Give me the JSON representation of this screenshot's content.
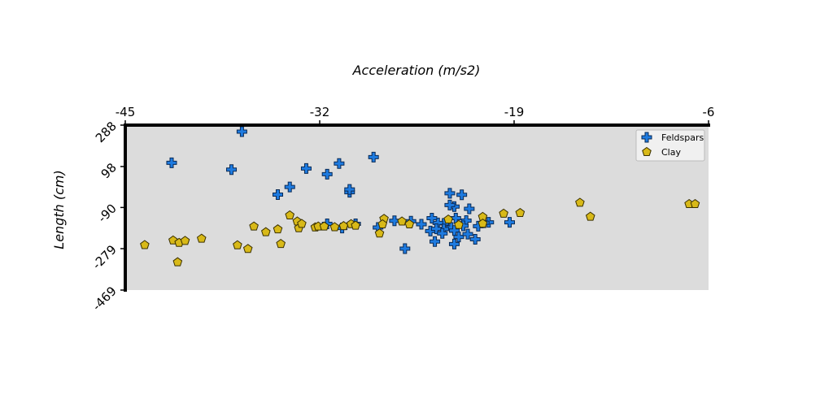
{
  "chart_data": {
    "type": "scatter",
    "title": "Acceleration (m/s2)",
    "xlabel": "Acceleration (m/s2)",
    "ylabel": "Length (cm)",
    "xlim": [
      -45,
      -6
    ],
    "ylim": [
      -469,
      288
    ],
    "x_ticks": [
      -45,
      -32,
      -19,
      -6
    ],
    "y_ticks": [
      288,
      98,
      -90,
      -279,
      -469
    ],
    "x_tick_labels": [
      "-45",
      "-32",
      "-19",
      "-6"
    ],
    "y_tick_labels": [
      "288",
      "98",
      "-90",
      "-279",
      "-469"
    ],
    "grid": false,
    "legend_position": "top-right",
    "colors": {
      "plot_background": "#dcdcdc",
      "feldspars": "#1e7be0",
      "clay": "#d8b918"
    },
    "series": [
      {
        "name": "Feldspars",
        "marker": "plus",
        "color": "#1e7be0",
        "points": [
          [
            -37.2,
            258
          ],
          [
            -41.9,
            115
          ],
          [
            -37.9,
            84
          ],
          [
            -32.9,
            89
          ],
          [
            -30.7,
            112
          ],
          [
            -31.5,
            63
          ],
          [
            -34.0,
            4
          ],
          [
            -34.8,
            -31
          ],
          [
            -28.4,
            141
          ],
          [
            -30.0,
            -20
          ],
          [
            -30.0,
            -7
          ],
          [
            -27.0,
            -151
          ],
          [
            -28.1,
            -182
          ],
          [
            -29.6,
            -165
          ],
          [
            -30.5,
            -184
          ],
          [
            -31.5,
            -165
          ],
          [
            -22.5,
            -32
          ],
          [
            -23.3,
            -25
          ],
          [
            -23.0,
            -86
          ],
          [
            -22.0,
            -96
          ],
          [
            -23.3,
            -79
          ],
          [
            -22.9,
            -139
          ],
          [
            -22.2,
            -150
          ],
          [
            -22.4,
            -174
          ],
          [
            -23.7,
            -163
          ],
          [
            -24.1,
            -161
          ],
          [
            -24.5,
            -139
          ],
          [
            -25.2,
            -167
          ],
          [
            -25.9,
            -153
          ],
          [
            -24.6,
            -198
          ],
          [
            -23.2,
            -182
          ],
          [
            -23.7,
            -189
          ],
          [
            -23.0,
            -196
          ],
          [
            -22.7,
            -225
          ],
          [
            -24.2,
            -188
          ],
          [
            -24.3,
            -246
          ],
          [
            -23.0,
            -258
          ],
          [
            -20.7,
            -158
          ],
          [
            -21.4,
            -176
          ],
          [
            -19.3,
            -158
          ],
          [
            -21.0,
            -160
          ],
          [
            -21.6,
            -236
          ],
          [
            -26.3,
            -279
          ],
          [
            -23.8,
            -209
          ],
          [
            -22.1,
            -212
          ]
        ]
      },
      {
        "name": "Clay",
        "marker": "pentagon",
        "color": "#d8b918",
        "points": [
          [
            -43.7,
            -262
          ],
          [
            -41.8,
            -241
          ],
          [
            -41.4,
            -252
          ],
          [
            -41.0,
            -243
          ],
          [
            -39.9,
            -233
          ],
          [
            -41.5,
            -341
          ],
          [
            -37.5,
            -263
          ],
          [
            -36.4,
            -177
          ],
          [
            -36.8,
            -280
          ],
          [
            -35.6,
            -203
          ],
          [
            -34.8,
            -190
          ],
          [
            -34.6,
            -257
          ],
          [
            -34.0,
            -126
          ],
          [
            -33.5,
            -154
          ],
          [
            -33.4,
            -185
          ],
          [
            -33.2,
            -165
          ],
          [
            -32.3,
            -181
          ],
          [
            -32.1,
            -177
          ],
          [
            -31.7,
            -177
          ],
          [
            -31.0,
            -180
          ],
          [
            -30.4,
            -175
          ],
          [
            -29.9,
            -166
          ],
          [
            -29.6,
            -173
          ],
          [
            -27.7,
            -142
          ],
          [
            -27.8,
            -167
          ],
          [
            -28.0,
            -209
          ],
          [
            -26.5,
            -154
          ],
          [
            -26.0,
            -167
          ],
          [
            -23.4,
            -145
          ],
          [
            -22.7,
            -170
          ],
          [
            -21.1,
            -133
          ],
          [
            -21.1,
            -164
          ],
          [
            -19.7,
            -118
          ],
          [
            -18.6,
            -115
          ],
          [
            -14.6,
            -68
          ],
          [
            -13.9,
            -132
          ],
          [
            -7.3,
            -74
          ],
          [
            -6.9,
            -74
          ]
        ]
      }
    ]
  }
}
